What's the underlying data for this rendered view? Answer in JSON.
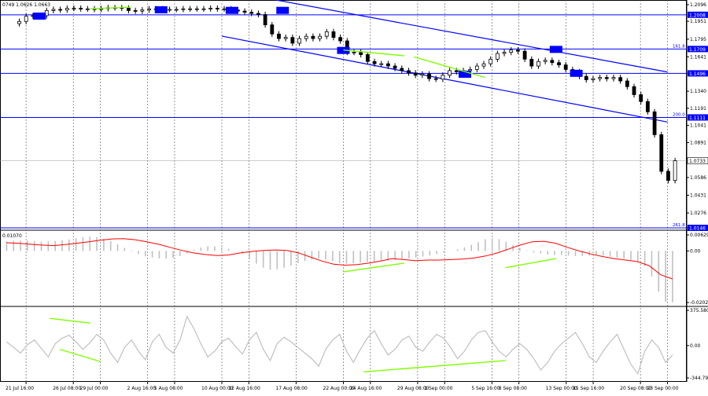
{
  "chart_data": {
    "type": "candlestick",
    "title": "",
    "main": {
      "ylim": [
        1.0146,
        1.2096
      ],
      "right_ticks": [
        "1.2096",
        "1.1951",
        "1.1795",
        "1.1641",
        "1.1496",
        "1.1340",
        "1.1191",
        "1.1041",
        "1.0891",
        "1.0733",
        "1.0586",
        "1.0431",
        "1.0276",
        "1.0146"
      ],
      "corner_label": "0749 1.0626 1.0663",
      "level_lines": [
        {
          "value": 1.2008,
          "label": "1.2008",
          "fib_label": ""
        },
        {
          "value": 1.1709,
          "label": "1.1709",
          "fib_label": "161.8"
        },
        {
          "value": 1.1496,
          "label": "1.1496",
          "fib_label": ""
        },
        {
          "value": 1.1111,
          "label": "1.1111",
          "fib_label": "200.0"
        },
        {
          "value": 1.0146,
          "label": "1.0146",
          "fib_label": "261.8"
        }
      ],
      "current_price": {
        "value": 1.0733,
        "label": "1.0733"
      },
      "channel_upper": [
        {
          "x": "15 Aug",
          "y": 1.2143
        },
        {
          "x": "23 Sep",
          "y": 1.1508
        }
      ],
      "channel_lower": [
        {
          "x": "10 Aug",
          "y": 1.1822
        },
        {
          "x": "23 Sep",
          "y": 1.1071
        }
      ],
      "close_series": [
        1.195,
        1.1995,
        1.2,
        1.2,
        1.2045,
        1.2055,
        1.205,
        1.2065,
        1.2065,
        1.206,
        1.206,
        1.2055,
        1.2062,
        1.207,
        1.207,
        1.2065,
        1.2045,
        1.204,
        1.205,
        1.206,
        1.206,
        1.2055,
        1.2055,
        1.2055,
        1.206,
        1.206,
        1.206,
        1.206,
        1.2065,
        1.206,
        1.206,
        1.205,
        1.204,
        1.203,
        1.202,
        1.201,
        1.192,
        1.184,
        1.18,
        1.181,
        1.176,
        1.18,
        1.182,
        1.18,
        1.182,
        1.186,
        1.181,
        1.178,
        1.168,
        1.168,
        1.166,
        1.16,
        1.158,
        1.158,
        1.156,
        1.154,
        1.152,
        1.15,
        1.148,
        1.149,
        1.145,
        1.1445,
        1.148,
        1.152,
        1.151,
        1.152,
        1.153,
        1.156,
        1.158,
        1.162,
        1.167,
        1.168,
        1.17,
        1.169,
        1.162,
        1.156,
        1.16,
        1.161,
        1.159,
        1.157,
        1.153,
        1.151,
        1.147,
        1.144,
        1.145,
        1.146,
        1.145,
        1.146,
        1.143,
        1.138,
        1.131,
        1.125,
        1.116,
        1.096,
        1.064,
        1.056,
        1.0733
      ],
      "blue_markers": [
        {
          "x": "23 Jul",
          "y": 1.2
        },
        {
          "x": "4 Aug",
          "y": 1.2055
        },
        {
          "x": "11 Aug",
          "y": 1.205
        },
        {
          "x": "16 Aug",
          "y": 1.205
        },
        {
          "x": "22 Aug",
          "y": 1.17
        },
        {
          "x": "3 Sep",
          "y": 1.1492
        },
        {
          "x": "12 Sep",
          "y": 1.1709
        },
        {
          "x": "14 Sep",
          "y": 1.15
        }
      ],
      "green_lines": [
        {
          "from": {
            "x": "28 Jul",
            "y": 1.206
          },
          "to": {
            "x": "1 Aug",
            "y": 1.2075
          }
        },
        {
          "from": {
            "x": "22 Aug",
            "y": 1.17
          },
          "to": {
            "x": "28 Aug",
            "y": 1.165
          }
        },
        {
          "from": {
            "x": "29 Aug",
            "y": 1.164
          },
          "to": {
            "x": "5 Sep",
            "y": 1.146
          }
        }
      ]
    },
    "macd": {
      "label": "0.01070",
      "ticks": [
        "0.00629",
        "0.00",
        "-0.02028"
      ],
      "ylim": [
        -0.02028,
        0.00629
      ],
      "histogram": [
        0.0038,
        0.004,
        0.0041,
        0.004,
        0.0038,
        0.0036,
        0.0038,
        0.0039,
        0.0042,
        0.0045,
        0.005,
        0.0054,
        0.0056,
        0.0054,
        0.0048,
        0.0038,
        0.0026,
        0.0012,
        -0.0002,
        -0.0012,
        -0.002,
        -0.0026,
        -0.003,
        -0.003,
        -0.0028,
        -0.002,
        -0.001,
        0.0004,
        0.0014,
        0.0018,
        0.0018,
        0.0014,
        0.0008,
        0.0,
        -0.001,
        -0.003,
        -0.005,
        -0.0066,
        -0.0074,
        -0.0072,
        -0.0066,
        -0.0058,
        -0.0048,
        -0.004,
        -0.0034,
        -0.003,
        -0.0034,
        -0.004,
        -0.0048,
        -0.005,
        -0.0048,
        -0.0046,
        -0.0044,
        -0.0042,
        -0.004,
        -0.0038,
        -0.0036,
        -0.0034,
        -0.003,
        -0.0026,
        -0.0022,
        -0.0018,
        -0.0012,
        -0.0006,
        0.0,
        0.0006,
        0.0014,
        0.0024,
        0.0034,
        0.0046,
        0.005,
        0.0046,
        0.0036,
        0.0024,
        0.0012,
        0.0002,
        -0.0006,
        -0.001,
        -0.0014,
        -0.0016,
        -0.0016,
        -0.0018,
        -0.002,
        -0.002,
        -0.0018,
        -0.0016,
        -0.0018,
        -0.0022,
        -0.0026,
        -0.003,
        -0.0036,
        -0.0044,
        -0.006,
        -0.01,
        -0.016,
        -0.02,
        -0.0202
      ],
      "signal": [
        0.0032,
        0.003,
        0.0026,
        0.0023,
        0.0021,
        0.0025,
        0.003,
        0.0036,
        0.0042,
        0.0047,
        0.0048,
        0.0044,
        0.0036,
        0.0026,
        0.0014,
        0.0002,
        -0.0008,
        -0.0014,
        -0.0018,
        -0.0016,
        -0.0008,
        -0.0002,
        0.0002,
        0.0004,
        0.0002,
        -0.0008,
        -0.0024,
        -0.004,
        -0.0052,
        -0.0056,
        -0.0054,
        -0.0048,
        -0.004,
        -0.003,
        -0.0034,
        -0.0038,
        -0.0036,
        -0.0036,
        -0.0034,
        -0.0032,
        -0.0028,
        -0.002,
        -0.0008,
        0.0008,
        0.0024,
        0.0036,
        0.0038,
        0.003,
        0.0014,
        0.0,
        -0.0012,
        -0.0022,
        -0.003,
        -0.0036,
        -0.0042,
        -0.0058,
        -0.0094,
        -0.011
      ],
      "green_lines": [
        {
          "from": {
            "x": "22 Aug",
            "y": -0.0082
          },
          "to": {
            "x": "28 Aug",
            "y": -0.0048
          }
        },
        {
          "from": {
            "x": "7 Sep",
            "y": -0.0066
          },
          "to": {
            "x": "12 Sep",
            "y": -0.003
          }
        }
      ]
    },
    "cci": {
      "ticks": [
        "375.5808",
        "0.00",
        "-344.798"
      ],
      "ylim": [
        -344.798,
        375.5808
      ],
      "values": [
        40,
        -20,
        -80,
        10,
        60,
        -30,
        -120,
        20,
        80,
        110,
        40,
        -40,
        30,
        120,
        60,
        -80,
        -180,
        -20,
        60,
        -60,
        -150,
        40,
        120,
        -20,
        -80,
        60,
        310,
        180,
        20,
        -120,
        -60,
        40,
        80,
        -10,
        -90,
        60,
        140,
        -40,
        -160,
        20,
        90,
        40,
        -20,
        -80,
        -140,
        -220,
        -40,
        60,
        120,
        -60,
        -180,
        -40,
        80,
        160,
        20,
        -100,
        -40,
        60,
        100,
        -20,
        -60,
        40,
        120,
        80,
        -20,
        -140,
        -60,
        60,
        140,
        160,
        40,
        -60,
        -120,
        -40,
        20,
        -40,
        -140,
        -260,
        -180,
        -60,
        20,
        80,
        140,
        20,
        -120,
        -180,
        -60,
        40,
        120,
        -40,
        -200,
        -300,
        -60,
        60,
        -20,
        -180,
        -100
      ],
      "green_lines": [
        {
          "from": {
            "x": "24 Jul",
            "y": 290
          },
          "to": {
            "x": "28 Jul",
            "y": 240
          }
        },
        {
          "from": {
            "x": "25 Jul",
            "y": -40
          },
          "to": {
            "x": "29 Jul",
            "y": -170
          }
        },
        {
          "from": {
            "x": "24 Aug",
            "y": -280
          },
          "to": {
            "x": "7 Sep",
            "y": -160
          }
        }
      ]
    },
    "x_labels": [
      "21 Jul 16:00",
      "26 Jul 08:00",
      "29 Jul 00:00",
      "2 Aug 16:00",
      "5 Aug 08:00",
      "10 Aug 00:00",
      "12 Aug 16:00",
      "17 Aug 08:00",
      "22 Aug 00:00",
      "24 Aug 16:00",
      "29 Aug 08:00",
      "1 Sep 00:00",
      "5 Sep 16:00",
      "8 Sep 08:00",
      "13 Sep 00:00",
      "15 Sep 16:00",
      "20 Sep 08:00",
      "23 Sep 00:00"
    ],
    "colors": {
      "background": "#ffffff",
      "candle": "#000000",
      "level_line": "#0000ff",
      "channel": "#0000ff",
      "label_box": "#0000ff",
      "label_text": "#ffffff",
      "signal_line": "#ff0000",
      "histogram": "#c0c0c0",
      "cci_line": "#c0c0c0",
      "divergence": "#7fff00",
      "grid": "#555555"
    }
  }
}
